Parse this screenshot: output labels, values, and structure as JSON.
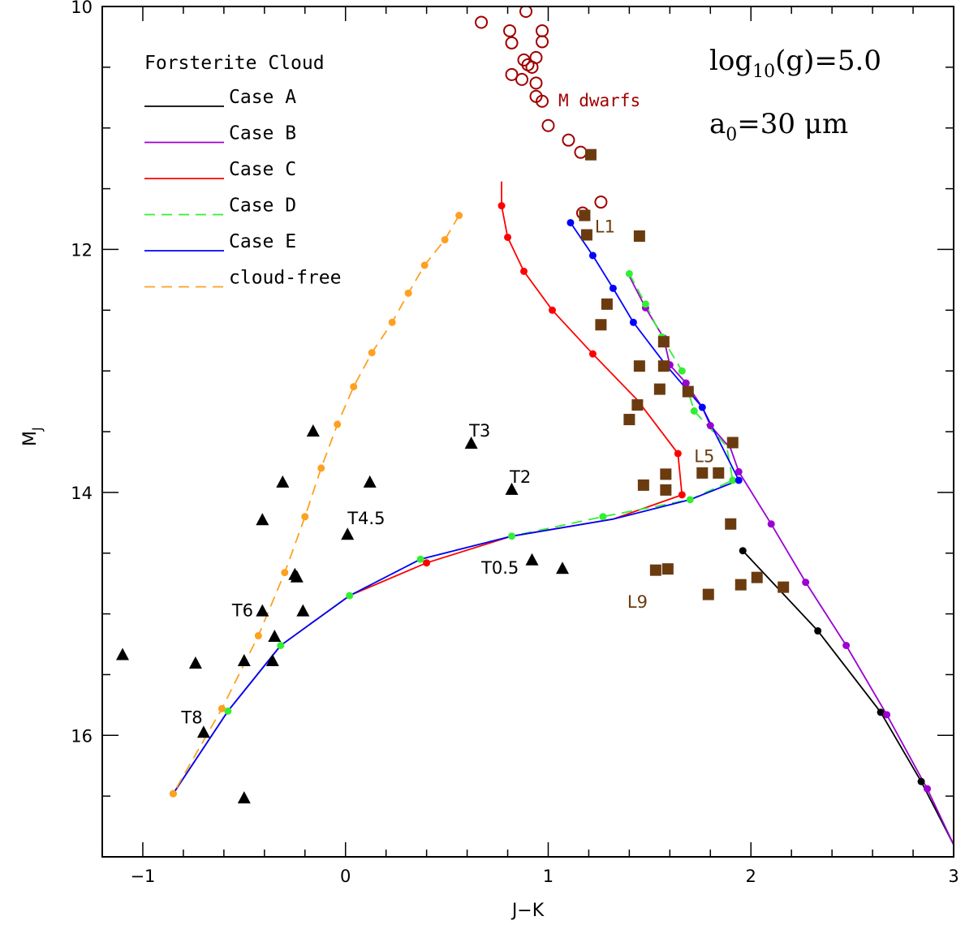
{
  "chart_data": {
    "type": "line",
    "xlabel": "J−K",
    "ylabel": "M",
    "ylabel_sub": "J",
    "xlim": [
      -1.2,
      3.0
    ],
    "ylim": [
      17.0,
      10.0
    ],
    "y_inverted": true,
    "grid": false,
    "legend_position": "top-left",
    "legend_title": "Forsterite Cloud",
    "x_ticks": [
      {
        "v": -1,
        "label": "−1"
      },
      {
        "v": 0,
        "label": "0"
      },
      {
        "v": 1,
        "label": "1"
      },
      {
        "v": 2,
        "label": "2"
      },
      {
        "v": 3,
        "label": "3"
      }
    ],
    "y_ticks": [
      {
        "v": 10,
        "label": "10"
      },
      {
        "v": 12,
        "label": "12"
      },
      {
        "v": 14,
        "label": "14"
      },
      {
        "v": 16,
        "label": "16"
      }
    ],
    "params": {
      "logg_prefix": "log",
      "logg_sub": "10",
      "logg_suffix": "(g)=5.0",
      "a0_prefix": "a",
      "a0_sub": "0",
      "a0_suffix": "=30 μm"
    },
    "series": [
      {
        "name": "Case A",
        "color": "#000000",
        "dash": false,
        "points": [
          [
            1.96,
            14.48
          ],
          [
            2.33,
            15.14
          ],
          [
            2.64,
            15.81
          ],
          [
            2.84,
            16.38
          ],
          [
            3.0,
            16.9
          ]
        ],
        "markers": [
          [
            1.96,
            14.48
          ],
          [
            2.33,
            15.14
          ],
          [
            2.64,
            15.81
          ],
          [
            2.84,
            16.38
          ]
        ]
      },
      {
        "name": "Case B",
        "color": "#9b00d3",
        "dash": false,
        "points": [
          [
            1.4,
            12.22
          ],
          [
            1.48,
            12.48
          ],
          [
            1.57,
            12.73
          ],
          [
            1.6,
            12.95
          ],
          [
            1.68,
            13.1
          ],
          [
            1.76,
            13.3
          ],
          [
            1.8,
            13.45
          ],
          [
            1.9,
            13.64
          ],
          [
            1.94,
            13.83
          ],
          [
            2.1,
            14.26
          ],
          [
            2.27,
            14.74
          ],
          [
            2.47,
            15.26
          ],
          [
            2.67,
            15.83
          ],
          [
            2.87,
            16.44
          ],
          [
            3.0,
            16.9
          ]
        ],
        "markers": [
          [
            1.48,
            12.48
          ],
          [
            1.57,
            12.73
          ],
          [
            1.6,
            12.95
          ],
          [
            1.68,
            13.1
          ],
          [
            1.8,
            13.45
          ],
          [
            1.94,
            13.83
          ],
          [
            2.1,
            14.26
          ],
          [
            2.27,
            14.74
          ],
          [
            2.47,
            15.26
          ],
          [
            2.67,
            15.83
          ],
          [
            2.87,
            16.44
          ]
        ]
      },
      {
        "name": "Case C",
        "color": "#ff0000",
        "dash": false,
        "points": [
          [
            0.77,
            11.44
          ],
          [
            0.77,
            11.64
          ],
          [
            0.8,
            11.9
          ],
          [
            0.88,
            12.18
          ],
          [
            1.02,
            12.5
          ],
          [
            1.22,
            12.86
          ],
          [
            1.44,
            13.24
          ],
          [
            1.64,
            13.68
          ],
          [
            1.66,
            14.02
          ],
          [
            1.32,
            14.22
          ],
          [
            0.82,
            14.36
          ],
          [
            0.4,
            14.58
          ],
          [
            0.02,
            14.85
          ],
          [
            -0.32,
            15.26
          ],
          [
            -0.58,
            15.8
          ],
          [
            -0.85,
            16.48
          ]
        ],
        "markers": [
          [
            0.77,
            11.64
          ],
          [
            0.8,
            11.9
          ],
          [
            0.88,
            12.18
          ],
          [
            1.02,
            12.5
          ],
          [
            1.22,
            12.86
          ],
          [
            1.64,
            13.68
          ],
          [
            1.66,
            14.02
          ],
          [
            0.4,
            14.58
          ]
        ]
      },
      {
        "name": "Case D",
        "color": "#33ee33",
        "dash": true,
        "points": [
          [
            1.4,
            12.2
          ],
          [
            1.48,
            12.45
          ],
          [
            1.56,
            12.72
          ],
          [
            1.66,
            13.0
          ],
          [
            1.72,
            13.33
          ],
          [
            1.88,
            13.62
          ],
          [
            1.91,
            13.9
          ],
          [
            1.7,
            14.06
          ],
          [
            1.27,
            14.2
          ],
          [
            0.82,
            14.36
          ],
          [
            0.37,
            14.55
          ],
          [
            0.02,
            14.85
          ],
          [
            -0.32,
            15.26
          ],
          [
            -0.58,
            15.8
          ],
          [
            -0.85,
            16.48
          ]
        ],
        "markers": [
          [
            1.4,
            12.2
          ],
          [
            1.48,
            12.45
          ],
          [
            1.56,
            12.72
          ],
          [
            1.66,
            13.0
          ],
          [
            1.72,
            13.33
          ],
          [
            1.91,
            13.9
          ],
          [
            1.7,
            14.06
          ],
          [
            1.27,
            14.2
          ],
          [
            0.82,
            14.36
          ],
          [
            0.37,
            14.55
          ],
          [
            0.02,
            14.85
          ],
          [
            -0.32,
            15.26
          ],
          [
            -0.58,
            15.8
          ],
          [
            -0.85,
            16.48
          ]
        ]
      },
      {
        "name": "Case E",
        "color": "#0000ff",
        "dash": false,
        "points": [
          [
            1.11,
            11.78
          ],
          [
            1.22,
            12.05
          ],
          [
            1.32,
            12.32
          ],
          [
            1.42,
            12.6
          ],
          [
            1.58,
            12.95
          ],
          [
            1.76,
            13.3
          ],
          [
            1.94,
            13.9
          ],
          [
            1.7,
            14.06
          ],
          [
            1.32,
            14.22
          ],
          [
            0.82,
            14.36
          ],
          [
            0.37,
            14.55
          ],
          [
            0.02,
            14.85
          ],
          [
            -0.32,
            15.26
          ],
          [
            -0.58,
            15.8
          ],
          [
            -0.85,
            16.48
          ]
        ],
        "markers": [
          [
            1.11,
            11.78
          ],
          [
            1.22,
            12.05
          ],
          [
            1.32,
            12.32
          ],
          [
            1.42,
            12.6
          ],
          [
            1.58,
            12.95
          ],
          [
            1.76,
            13.3
          ],
          [
            1.94,
            13.9
          ]
        ]
      },
      {
        "name": "cloud-free",
        "color": "#ffa020",
        "dash": true,
        "points": [
          [
            0.56,
            11.72
          ],
          [
            0.49,
            11.92
          ],
          [
            0.39,
            12.13
          ],
          [
            0.31,
            12.36
          ],
          [
            0.23,
            12.6
          ],
          [
            0.13,
            12.85
          ],
          [
            0.04,
            13.13
          ],
          [
            -0.04,
            13.44
          ],
          [
            -0.12,
            13.8
          ],
          [
            -0.2,
            14.2
          ],
          [
            -0.3,
            14.66
          ],
          [
            -0.43,
            15.18
          ],
          [
            -0.61,
            15.78
          ],
          [
            -0.85,
            16.48
          ]
        ],
        "markers": [
          [
            0.56,
            11.72
          ],
          [
            0.49,
            11.92
          ],
          [
            0.39,
            12.13
          ],
          [
            0.31,
            12.36
          ],
          [
            0.23,
            12.6
          ],
          [
            0.13,
            12.85
          ],
          [
            0.04,
            13.13
          ],
          [
            -0.04,
            13.44
          ],
          [
            -0.12,
            13.8
          ],
          [
            -0.2,
            14.2
          ],
          [
            -0.3,
            14.66
          ],
          [
            -0.43,
            15.18
          ],
          [
            -0.61,
            15.78
          ],
          [
            -0.85,
            16.48
          ]
        ]
      }
    ],
    "observed": {
      "m_dwarfs": {
        "color": "#a00000",
        "points": [
          [
            0.67,
            10.13
          ],
          [
            0.89,
            10.04
          ],
          [
            0.81,
            10.2
          ],
          [
            0.82,
            10.3
          ],
          [
            0.97,
            10.2
          ],
          [
            0.97,
            10.29
          ],
          [
            0.88,
            10.44
          ],
          [
            0.94,
            10.42
          ],
          [
            0.9,
            10.48
          ],
          [
            0.92,
            10.5
          ],
          [
            0.82,
            10.56
          ],
          [
            0.87,
            10.6
          ],
          [
            0.94,
            10.63
          ],
          [
            0.94,
            10.74
          ],
          [
            0.97,
            10.78
          ],
          [
            1.0,
            10.98
          ],
          [
            1.1,
            11.1
          ],
          [
            1.16,
            11.2
          ],
          [
            1.17,
            11.7
          ],
          [
            1.26,
            11.61
          ]
        ]
      },
      "l_dwarfs": {
        "color": "#6b3b10",
        "points": [
          [
            1.21,
            11.22
          ],
          [
            1.18,
            11.72
          ],
          [
            1.19,
            11.88
          ],
          [
            1.45,
            11.89
          ],
          [
            1.29,
            12.45
          ],
          [
            1.26,
            12.62
          ],
          [
            1.45,
            12.96
          ],
          [
            1.57,
            12.76
          ],
          [
            1.57,
            12.96
          ],
          [
            1.55,
            13.15
          ],
          [
            1.69,
            13.17
          ],
          [
            1.44,
            13.28
          ],
          [
            1.4,
            13.4
          ],
          [
            1.91,
            13.59
          ],
          [
            1.58,
            13.85
          ],
          [
            1.76,
            13.84
          ],
          [
            1.84,
            13.84
          ],
          [
            1.47,
            13.94
          ],
          [
            1.58,
            13.98
          ],
          [
            1.9,
            14.26
          ],
          [
            1.53,
            14.64
          ],
          [
            1.59,
            14.63
          ],
          [
            1.95,
            14.76
          ],
          [
            2.03,
            14.7
          ],
          [
            2.16,
            14.78
          ],
          [
            1.79,
            14.84
          ]
        ]
      },
      "t_dwarfs": {
        "color": "#000000",
        "points": [
          [
            -1.1,
            15.34
          ],
          [
            -0.74,
            15.41
          ],
          [
            -0.7,
            15.98
          ],
          [
            -0.5,
            15.39
          ],
          [
            -0.5,
            16.52
          ],
          [
            -0.41,
            14.23
          ],
          [
            -0.41,
            14.98
          ],
          [
            -0.36,
            15.39
          ],
          [
            -0.35,
            15.19
          ],
          [
            -0.31,
            13.92
          ],
          [
            -0.25,
            14.68
          ],
          [
            -0.24,
            14.7
          ],
          [
            -0.21,
            14.98
          ],
          [
            -0.16,
            13.5
          ],
          [
            0.01,
            14.35
          ],
          [
            0.12,
            13.92
          ],
          [
            0.62,
            13.6
          ],
          [
            0.82,
            13.98
          ],
          [
            0.92,
            14.56
          ],
          [
            1.07,
            14.63
          ]
        ]
      }
    },
    "annotations": [
      {
        "text": "M dwarfs",
        "x": 1.05,
        "y": 10.82,
        "color": "#a00000",
        "font": "mono"
      },
      {
        "text": "L1",
        "x": 1.23,
        "y": 11.86,
        "color": "#6b3b10",
        "font": "sans"
      },
      {
        "text": "L5",
        "x": 1.72,
        "y": 13.75,
        "color": "#6b3b10",
        "font": "sans"
      },
      {
        "text": "L9",
        "x": 1.39,
        "y": 14.95,
        "color": "#6b3b10",
        "font": "sans"
      },
      {
        "text": "T3",
        "x": 0.61,
        "y": 13.54,
        "color": "#000000",
        "font": "sans"
      },
      {
        "text": "T2",
        "x": 0.81,
        "y": 13.92,
        "color": "#000000",
        "font": "sans"
      },
      {
        "text": "T4.5",
        "x": 0.01,
        "y": 14.26,
        "color": "#000000",
        "font": "sans"
      },
      {
        "text": "T0.5",
        "x": 0.67,
        "y": 14.67,
        "color": "#000000",
        "font": "sans"
      },
      {
        "text": "T6",
        "x": -0.56,
        "y": 15.02,
        "color": "#000000",
        "font": "sans"
      },
      {
        "text": "T8",
        "x": -0.81,
        "y": 15.9,
        "color": "#000000",
        "font": "sans"
      }
    ]
  }
}
